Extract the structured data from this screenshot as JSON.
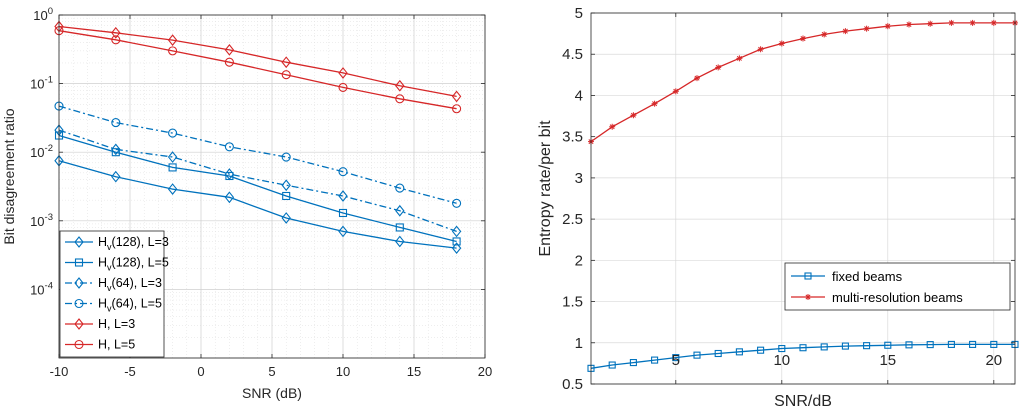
{
  "chart_data": [
    {
      "type": "line",
      "xlabel": "SNR (dB)",
      "ylabel": "Bit disagreement ratio",
      "xlim": [
        -10,
        20
      ],
      "xticks": [
        -10,
        -5,
        0,
        5,
        10,
        15,
        20
      ],
      "ylim": [
        1e-05,
        1
      ],
      "yscale": "log",
      "yticks": [
        {
          "value": 0.0001,
          "base": "10",
          "exp": "-4"
        },
        {
          "value": 0.001,
          "base": "10",
          "exp": "-3"
        },
        {
          "value": 0.01,
          "base": "10",
          "exp": "-2"
        },
        {
          "value": 0.1,
          "base": "10",
          "exp": "-1"
        },
        {
          "value": 1,
          "base": "10",
          "exp": "0"
        }
      ],
      "grid": true,
      "legend_position": "bottom-left",
      "x": [
        -10,
        -6,
        -2,
        2,
        6,
        10,
        14,
        18
      ],
      "series": [
        {
          "name": "H_v(128), L=3",
          "legend_main": "H",
          "legend_sub": "v",
          "legend_rest": "(128), L=3",
          "color": "#0072BD",
          "marker": "diamond",
          "dash": "solid",
          "values": [
            0.0075,
            0.0044,
            0.0029,
            0.0022,
            0.0011,
            0.0007,
            0.0005,
            0.0004
          ]
        },
        {
          "name": "H_v(128), L=5",
          "legend_main": "H",
          "legend_sub": "v",
          "legend_rest": "(128), L=5",
          "color": "#0072BD",
          "marker": "square",
          "dash": "solid",
          "values": [
            0.0175,
            0.01,
            0.006,
            0.0045,
            0.0023,
            0.0013,
            0.0008,
            0.0005
          ]
        },
        {
          "name": "H_v(64), L=3",
          "legend_main": "H",
          "legend_sub": "v",
          "legend_rest": "(64), L=3",
          "color": "#0072BD",
          "marker": "diamond",
          "dash": "dashdot",
          "values": [
            0.021,
            0.011,
            0.0085,
            0.0048,
            0.0033,
            0.0023,
            0.0014,
            0.0007
          ]
        },
        {
          "name": "H_v(64), L=5",
          "legend_main": "H",
          "legend_sub": "v",
          "legend_rest": "(64), L=5",
          "color": "#0072BD",
          "marker": "circle",
          "dash": "dashdot",
          "values": [
            0.047,
            0.027,
            0.019,
            0.012,
            0.0085,
            0.0052,
            0.003,
            0.0018
          ]
        },
        {
          "name": "H, L=3",
          "legend_main": "H, L=3",
          "legend_sub": "",
          "legend_rest": "",
          "color": "#D62728",
          "marker": "diamond",
          "dash": "solid",
          "values": [
            0.68,
            0.55,
            0.43,
            0.31,
            0.205,
            0.143,
            0.093,
            0.065
          ]
        },
        {
          "name": "H, L=5",
          "legend_main": "H, L=5",
          "legend_sub": "",
          "legend_rest": "",
          "color": "#D62728",
          "marker": "circle",
          "dash": "solid",
          "values": [
            0.59,
            0.435,
            0.3,
            0.205,
            0.135,
            0.088,
            0.06,
            0.043
          ]
        }
      ]
    },
    {
      "type": "line",
      "xlabel": "SNR/dB",
      "ylabel": "Entropy rate/per bit",
      "xlim": [
        1,
        21
      ],
      "xticks": [
        5,
        10,
        15,
        20
      ],
      "ylim": [
        0.5,
        5
      ],
      "yticks": [
        0.5,
        1,
        1.5,
        2,
        2.5,
        3,
        3.5,
        4,
        4.5,
        5
      ],
      "grid": true,
      "legend_position": "bottom-right",
      "x": [
        1,
        2,
        3,
        4,
        5,
        6,
        7,
        8,
        9,
        10,
        11,
        12,
        13,
        14,
        15,
        16,
        17,
        18,
        19,
        20,
        21
      ],
      "series": [
        {
          "name": "fixed beams",
          "color": "#0072BD",
          "marker": "square",
          "values": [
            0.69,
            0.73,
            0.76,
            0.79,
            0.82,
            0.85,
            0.87,
            0.89,
            0.91,
            0.93,
            0.94,
            0.95,
            0.96,
            0.965,
            0.97,
            0.975,
            0.978,
            0.98,
            0.98,
            0.98,
            0.98
          ]
        },
        {
          "name": "multi-resolution beams",
          "color": "#D62728",
          "marker": "asterisk",
          "values": [
            3.44,
            3.62,
            3.76,
            3.9,
            4.05,
            4.21,
            4.34,
            4.45,
            4.56,
            4.63,
            4.69,
            4.74,
            4.78,
            4.81,
            4.84,
            4.86,
            4.87,
            4.88,
            4.88,
            4.88,
            4.88
          ]
        }
      ]
    }
  ]
}
